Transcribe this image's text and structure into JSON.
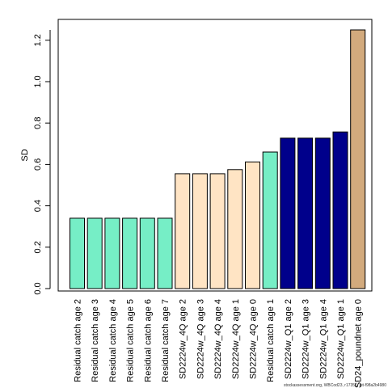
{
  "chart_data": {
    "type": "bar",
    "ylabel": "SD",
    "xlabel": "",
    "ylim": [
      0,
      1.25
    ],
    "yticks": [
      "0.0",
      "0.2",
      "0.4",
      "0.6",
      "0.8",
      "1.0",
      "1.2"
    ],
    "categories": [
      "Residual catch age 2",
      "Residual catch age 3",
      "Residual catch age 4",
      "Residual catch age 5",
      "Residual catch age 6",
      "Residual catch age 7",
      "SD2224w_4Q age 2",
      "SD2224w_4Q age 3",
      "SD2224w_4Q age 4",
      "SD2224w_4Q age 1",
      "SD2224w_4Q age 0",
      "Residual catch age 1",
      "SD2224w_Q1 age 2",
      "SD2224w_Q1 age 3",
      "SD2224w_Q1 age 4",
      "SD2224w_Q1 age 1",
      "SD24_poundnet age 0"
    ],
    "values": [
      0.34,
      0.34,
      0.34,
      0.34,
      0.34,
      0.34,
      0.555,
      0.555,
      0.555,
      0.575,
      0.612,
      0.66,
      0.727,
      0.727,
      0.727,
      0.757,
      1.25
    ],
    "colors": [
      "#76eec6",
      "#76eec6",
      "#76eec6",
      "#76eec6",
      "#76eec6",
      "#76eec6",
      "#ffe4c4",
      "#ffe4c4",
      "#ffe4c4",
      "#ffe4c4",
      "#ffe4c4",
      "#76eec6",
      "#00008b",
      "#00008b",
      "#00008b",
      "#00008b",
      "#d2aa7d"
    ]
  },
  "footer": "stockassessment.org, WBCod23, r17351, git-f98a2b4980"
}
